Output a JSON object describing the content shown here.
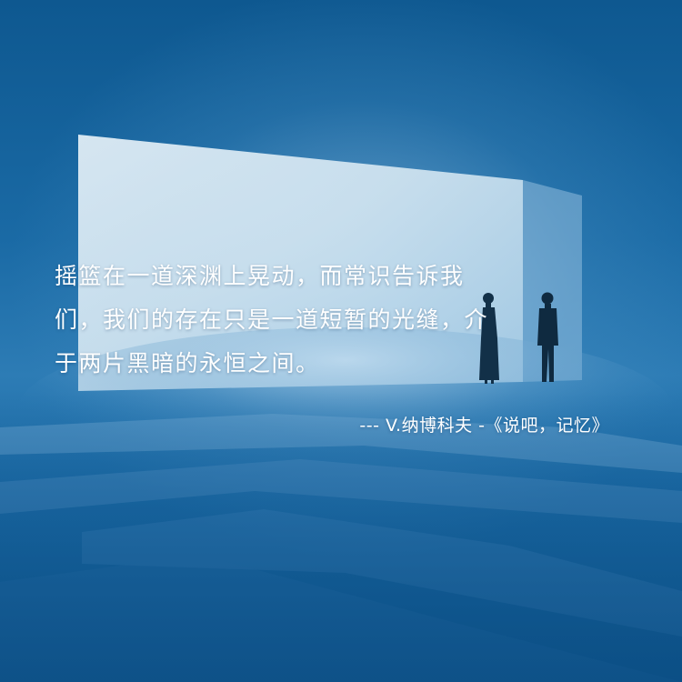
{
  "quote": {
    "lines": [
      "摇篮在一道深渊上晃动，而常识告诉我",
      "们，我们的存在只是一道短暂的光缝，介",
      "于两片黑暗的永恒之间。"
    ]
  },
  "attribution": "--- V.纳博科夫 -《说吧，记忆》"
}
